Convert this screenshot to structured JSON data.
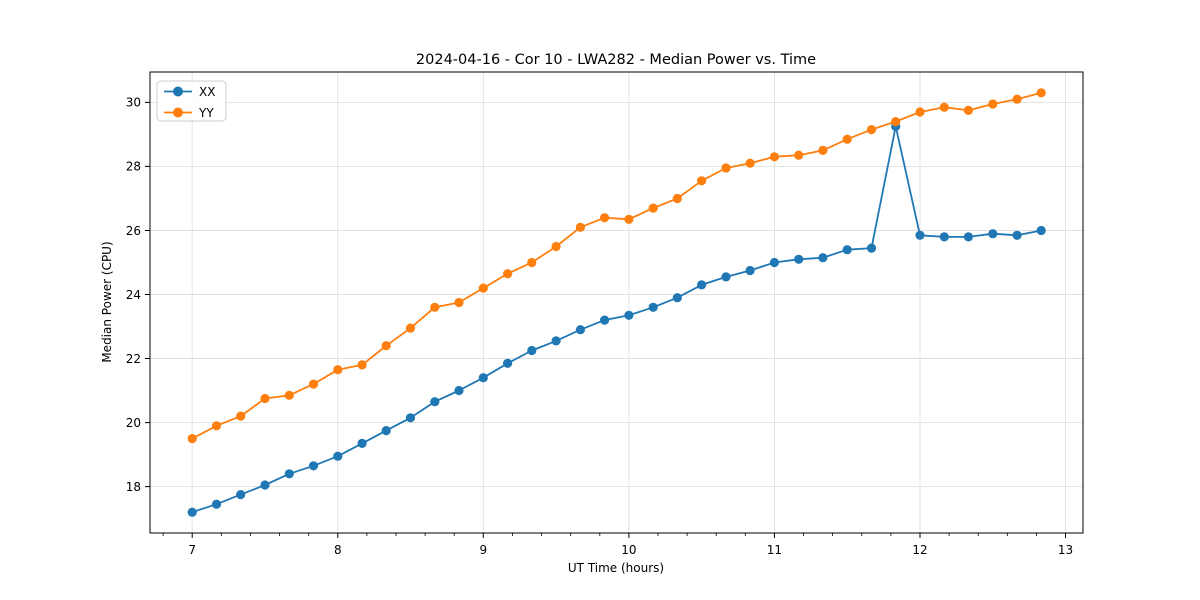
{
  "figure": {
    "title": "2024-04-16 - Cor 10 - LWA282 - Median Power vs. Time",
    "xlabel": "UT Time (hours)",
    "ylabel": "Median Power (CPU)"
  },
  "legend": {
    "position": "upper left",
    "items": [
      {
        "label": "XX",
        "color": "#1f77b4"
      },
      {
        "label": "YY",
        "color": "#ff7f0e"
      }
    ]
  },
  "colors": {
    "series_xx": "#1f77b4",
    "series_yy": "#ff7f0e",
    "grid": "#e0e0e0",
    "spine": "#000000",
    "background": "#ffffff"
  },
  "chart_data": {
    "type": "line",
    "title": "2024-04-16 - Cor 10 - LWA282 - Median Power vs. Time",
    "xlabel": "UT Time (hours)",
    "ylabel": "Median Power (CPU)",
    "grid": true,
    "legend_position": "upper left",
    "marker": "circle",
    "xlim": [
      6.71,
      13.12
    ],
    "ylim": [
      16.55,
      30.95
    ],
    "xticks": [
      7,
      8,
      9,
      10,
      11,
      12,
      13
    ],
    "yticks": [
      18,
      20,
      22,
      24,
      26,
      28,
      30
    ],
    "x_minor_step": 0.2,
    "x": [
      7.0,
      7.167,
      7.333,
      7.5,
      7.667,
      7.833,
      8.0,
      8.167,
      8.333,
      8.5,
      8.667,
      8.833,
      9.0,
      9.167,
      9.333,
      9.5,
      9.667,
      9.833,
      10.0,
      10.167,
      10.333,
      10.5,
      10.667,
      10.833,
      11.0,
      11.167,
      11.333,
      11.5,
      11.667,
      11.833,
      12.0,
      12.167,
      12.333,
      12.5,
      12.667,
      12.833
    ],
    "series": [
      {
        "name": "XX",
        "color": "#1f77b4",
        "values": [
          17.2,
          17.45,
          17.75,
          18.05,
          18.4,
          18.65,
          18.95,
          19.35,
          19.75,
          20.15,
          20.65,
          21.0,
          21.4,
          21.85,
          22.25,
          22.55,
          22.9,
          23.2,
          23.35,
          23.6,
          23.9,
          24.3,
          24.55,
          24.75,
          25.0,
          25.1,
          25.15,
          25.4,
          25.45,
          29.25,
          25.85,
          25.8,
          25.8,
          25.9,
          25.85,
          26.0
        ]
      },
      {
        "name": "YY",
        "color": "#ff7f0e",
        "values": [
          19.5,
          19.9,
          20.2,
          20.75,
          20.85,
          21.2,
          21.65,
          21.8,
          22.4,
          22.95,
          23.6,
          23.75,
          24.2,
          24.65,
          25.0,
          25.5,
          26.1,
          26.4,
          26.35,
          26.7,
          27.0,
          27.55,
          27.95,
          28.1,
          28.3,
          28.35,
          28.5,
          28.85,
          29.15,
          29.4,
          29.7,
          29.85,
          29.75,
          29.95,
          30.1,
          30.3
        ]
      }
    ]
  }
}
